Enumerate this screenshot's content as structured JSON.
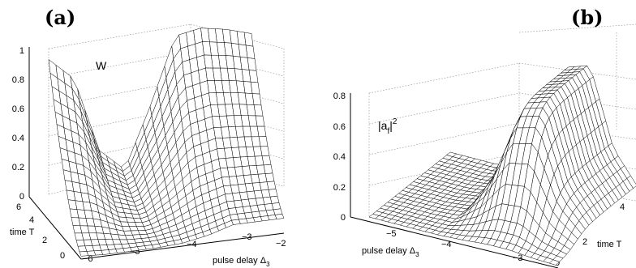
{
  "panels": [
    {
      "label": "(a)",
      "z_label": "W",
      "x_label": "pulse delay Δ",
      "x_label_sub": "3",
      "y_label": "time T",
      "z_ticks": [
        "0",
        "0.2",
        "0.4",
        "0.6",
        "0.8",
        "1"
      ],
      "x_ticks": [
        "−6",
        "−5",
        "−4",
        "−3",
        "−2"
      ],
      "y_ticks": [
        "0",
        "2",
        "4",
        "6"
      ]
    },
    {
      "label": "(b)",
      "z_label": "|a",
      "z_label_sub": "f",
      "z_label_rest": "|",
      "z_label_sup": "2",
      "x_label": "pulse delay Δ",
      "x_label_sub": "3",
      "y_label": "time T",
      "z_ticks": [
        "0",
        "0.2",
        "0.4",
        "0.6",
        "0.8"
      ],
      "x_ticks": [
        "−5",
        "−4",
        "−3"
      ],
      "y_ticks": [
        "0",
        "2",
        "4"
      ]
    }
  ],
  "chart_data": [
    {
      "type": "surface",
      "title": "(a)",
      "zlabel": "W",
      "xlabel": "pulse delay Δ3",
      "ylabel": "time T",
      "xlim": [
        -6,
        -2
      ],
      "ylim": [
        0,
        6
      ],
      "zlim": [
        0,
        1
      ],
      "grid": true,
      "description_values": {
        "x": [
          -6,
          -5.5,
          -5,
          -4.5,
          -4,
          -3.5,
          -3,
          -2.5,
          -2
        ],
        "z_at_T6": [
          0.9,
          0.75,
          0.25,
          0.1,
          0.5,
          0.95,
          0.98,
          0.95,
          0.9
        ],
        "z_at_T0": [
          0.02,
          0.01,
          0.01,
          0.01,
          0.02,
          0.05,
          0.1,
          0.1,
          0.1
        ]
      }
    },
    {
      "type": "surface",
      "title": "(b)",
      "zlabel": "|af|^2",
      "xlabel": "pulse delay Δ3",
      "ylabel": "time T",
      "xlim": [
        -6,
        -2
      ],
      "ylim": [
        0,
        5
      ],
      "zlim": [
        0,
        0.8
      ],
      "grid": true,
      "description_values": {
        "x": [
          -6,
          -5.5,
          -5,
          -4.5,
          -4,
          -3.5,
          -3,
          -2.5,
          -2
        ],
        "z_at_Tmax": [
          0,
          0,
          0,
          0.02,
          0.3,
          0.75,
          0.8,
          0.3,
          0.1
        ]
      }
    }
  ]
}
